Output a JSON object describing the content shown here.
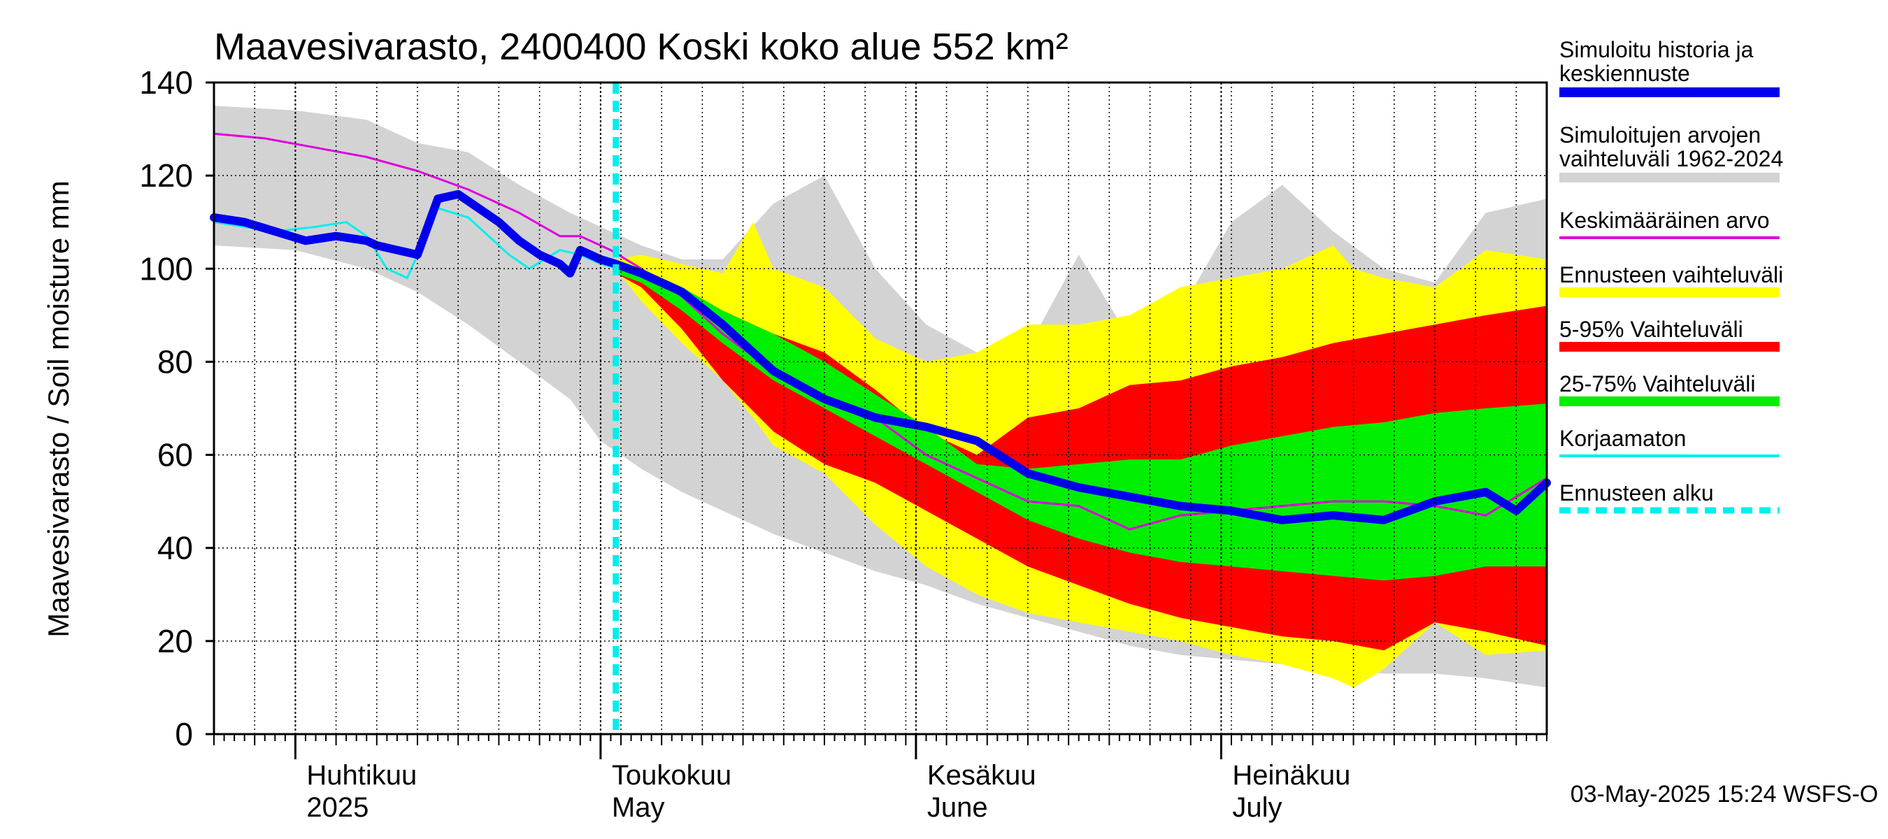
{
  "chart_data": {
    "type": "area",
    "title": "Maavesivarasto, 2400400 Koski koko alue 552 km²",
    "ylabel": "Maavesivarasto / Soil moisture   mm",
    "xlabel": "",
    "ylim": [
      0,
      140
    ],
    "yticks": [
      "0",
      "20",
      "40",
      "60",
      "80",
      "100",
      "120",
      "140"
    ],
    "x_range_days": [
      0,
      131
    ],
    "x_day_note": "day 0 = 2025-03-24",
    "months": [
      {
        "fi": "Huhtikuu",
        "en": "2025",
        "day": 8
      },
      {
        "fi": "Toukokuu",
        "en": "May",
        "day": 38
      },
      {
        "fi": "Kesäkuu",
        "en": "June",
        "day": 69
      },
      {
        "fi": "Heinäkuu",
        "en": "July",
        "day": 99
      }
    ],
    "forecast_start_day": 39.5,
    "timestamp": "03-May-2025 15:24 WSFS-O",
    "legend": [
      {
        "label": "Simuloitu historia ja",
        "label2": "keskiennuste",
        "color": "#0000ee",
        "style": "thick"
      },
      {
        "label": "Simuloitujen arvojen",
        "label2": "vaihteluväli 1962-2024",
        "color": "#d3d3d3",
        "style": "band"
      },
      {
        "label": "Keskimääräinen arvo",
        "label2": "",
        "color": "#dd00dd",
        "style": "line"
      },
      {
        "label": "Ennusteen vaihteluväli",
        "label2": "",
        "color": "#ffff00",
        "style": "band"
      },
      {
        "label": "5-95% Vaihteluväli",
        "label2": "",
        "color": "#ff0000",
        "style": "band"
      },
      {
        "label": "25-75% Vaihteluväli",
        "label2": "",
        "color": "#00ee00",
        "style": "band"
      },
      {
        "label": "Korjaamaton",
        "label2": "",
        "color": "#00eeee",
        "style": "line"
      },
      {
        "label": "Ennusteen alku",
        "label2": "",
        "color": "#00eeee",
        "style": "dashed"
      }
    ],
    "series": [
      {
        "name": "Simuloitujen arvojen vaihteluväli 1962-2024",
        "kind": "band",
        "color": "#d3d3d3",
        "x": [
          0,
          8,
          15,
          20,
          25,
          30,
          35,
          38,
          42,
          46,
          50,
          55,
          60,
          65,
          70,
          75,
          80,
          85,
          90,
          95,
          100,
          105,
          110,
          115,
          120,
          125,
          131
        ],
        "low": [
          105,
          104,
          100,
          95,
          88,
          80,
          72,
          63,
          57,
          52,
          48,
          43,
          39,
          35,
          32,
          28,
          25,
          22,
          19,
          17,
          16,
          15,
          14,
          13,
          13,
          12,
          10
        ],
        "high": [
          135,
          134,
          132,
          127,
          125,
          118,
          112,
          109,
          105,
          102,
          102,
          114,
          120,
          100,
          88,
          82,
          83,
          103,
          85,
          91,
          110,
          118,
          108,
          100,
          97,
          112,
          115
        ]
      },
      {
        "name": "Ennusteen vaihteluväli",
        "kind": "band",
        "color": "#ffff00",
        "x": [
          39.5,
          42,
          46,
          50,
          53,
          55,
          60,
          65,
          70,
          75,
          80,
          85,
          90,
          95,
          100,
          105,
          110,
          112,
          115,
          120,
          125,
          131
        ],
        "low": [
          100,
          93,
          84,
          76,
          68,
          62,
          56,
          45,
          36,
          30,
          26,
          24,
          22,
          20,
          17,
          15,
          12,
          10,
          14,
          24,
          17,
          18
        ],
        "high": [
          102,
          103,
          101,
          99,
          110,
          100,
          96,
          85,
          80,
          82,
          88,
          88,
          90,
          96,
          98,
          100,
          105,
          100,
          98,
          96,
          104,
          102
        ]
      },
      {
        "name": "5-95% Vaihteluväli",
        "kind": "band",
        "color": "#ff0000",
        "x": [
          39.5,
          42,
          46,
          50,
          55,
          60,
          65,
          70,
          75,
          80,
          85,
          90,
          95,
          100,
          105,
          110,
          115,
          120,
          125,
          131
        ],
        "low": [
          99,
          96,
          87,
          76,
          65,
          58,
          54,
          48,
          42,
          36,
          32,
          28,
          25,
          23,
          21,
          20,
          18,
          24,
          22,
          19
        ],
        "high": [
          101,
          100,
          95,
          91,
          86,
          82,
          74,
          65,
          60,
          68,
          70,
          75,
          76,
          79,
          81,
          84,
          86,
          88,
          90,
          92
        ]
      },
      {
        "name": "25-75% Vaihteluväli",
        "kind": "band",
        "color": "#00ee00",
        "x": [
          39.5,
          42,
          46,
          50,
          55,
          60,
          65,
          70,
          75,
          80,
          85,
          90,
          95,
          100,
          105,
          110,
          115,
          120,
          125,
          131
        ],
        "low": [
          99,
          97,
          91,
          84,
          76,
          70,
          64,
          58,
          52,
          46,
          42,
          39,
          37,
          36,
          35,
          34,
          33,
          34,
          36,
          36
        ],
        "high": [
          101,
          100,
          96,
          91,
          86,
          80,
          73,
          66,
          58,
          57,
          58,
          59,
          59,
          62,
          64,
          66,
          67,
          69,
          70,
          71
        ]
      },
      {
        "name": "Keskimääräinen arvo",
        "kind": "line",
        "color": "#dd00dd",
        "width": 3,
        "x": [
          0,
          5,
          10,
          15,
          20,
          25,
          30,
          34,
          36,
          39,
          42,
          46,
          50,
          55,
          60,
          65,
          70,
          75,
          80,
          85,
          90,
          95,
          100,
          105,
          110,
          115,
          120,
          125,
          131
        ],
        "y": [
          129,
          128,
          126,
          124,
          121,
          117,
          112,
          107,
          107,
          104,
          100,
          94,
          86,
          78,
          72,
          68,
          60,
          55,
          50,
          49,
          44,
          47,
          48,
          49,
          50,
          50,
          49,
          47,
          55
        ]
      },
      {
        "name": "Korjaamaton",
        "kind": "line",
        "color": "#00eeee",
        "width": 3,
        "x": [
          0,
          3,
          6,
          10,
          13,
          15,
          17,
          19,
          22,
          25,
          27,
          29,
          31,
          34,
          36,
          38,
          40
        ],
        "y": [
          110,
          109,
          108,
          109,
          110,
          107,
          100,
          98,
          113,
          111,
          107,
          103,
          100,
          104,
          103,
          101,
          100
        ]
      },
      {
        "name": "Simuloitu historia ja keskiennuste",
        "kind": "line",
        "color": "#0000ee",
        "width": 12,
        "x": [
          0,
          3,
          6,
          9,
          12,
          15,
          16,
          18,
          20,
          22,
          24,
          26,
          28,
          30,
          32,
          34,
          35,
          36,
          38,
          39.5,
          42,
          46,
          50,
          55,
          60,
          65,
          70,
          75,
          80,
          85,
          90,
          95,
          100,
          105,
          110,
          115,
          120,
          125,
          128,
          131
        ],
        "y": [
          111,
          110,
          108,
          106,
          107,
          106,
          105,
          104,
          103,
          115,
          116,
          113,
          110,
          106,
          103,
          101,
          99,
          104,
          102,
          101,
          99,
          95,
          88,
          78,
          72,
          68,
          66,
          63,
          56,
          53,
          51,
          49,
          48,
          46,
          47,
          46,
          50,
          52,
          48,
          54
        ]
      }
    ]
  }
}
